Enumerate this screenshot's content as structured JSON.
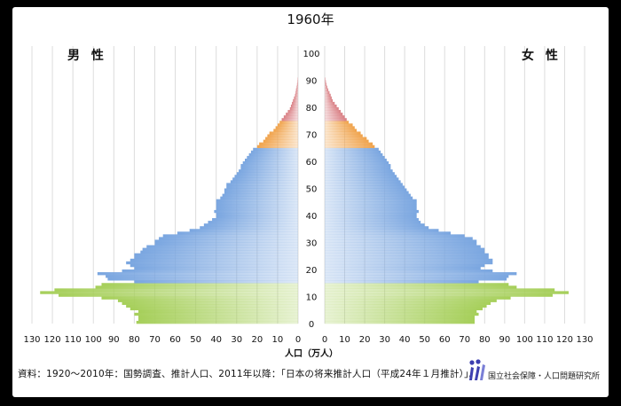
{
  "title": "1960年",
  "footnote": "資料：1920～2010年：国勢調査、推計人口、2011年以降：「日本の将来推計人口（平成24年１月推計）」。",
  "logo": {
    "org_name": "国立社会保障・人口問題研究所"
  },
  "colors": {
    "age_0_14": "#a6cf5a",
    "age_15_64": "#7aa6e0",
    "age_65_74": "#f0a34c",
    "age_75_plus": "#d97f84",
    "grid": "#dcdcdc"
  },
  "chart_data": {
    "type": "bar",
    "orientation": "horizontal",
    "title": "1960年",
    "left_label": "男 性",
    "right_label": "女 性",
    "xlabel": "人口（万人）",
    "x_ticks": [
      130,
      120,
      110,
      100,
      90,
      80,
      70,
      60,
      50,
      40,
      30,
      20,
      10,
      0
    ],
    "y_ticks": [
      0,
      10,
      20,
      30,
      40,
      50,
      60,
      70,
      80,
      90,
      100
    ],
    "xlim": [
      0,
      130
    ],
    "ylim": [
      0,
      100
    ],
    "grid": true,
    "age_groups": [
      {
        "name": "0-14",
        "from": 0,
        "to": 14
      },
      {
        "name": "15-64",
        "from": 15,
        "to": 64
      },
      {
        "name": "65-74",
        "from": 65,
        "to": 74
      },
      {
        "name": "75+",
        "from": 75,
        "to": 100
      }
    ],
    "ages": [
      0,
      1,
      2,
      3,
      4,
      5,
      6,
      7,
      8,
      9,
      10,
      11,
      12,
      13,
      14,
      15,
      16,
      17,
      18,
      19,
      20,
      21,
      22,
      23,
      24,
      25,
      26,
      27,
      28,
      29,
      30,
      31,
      32,
      33,
      34,
      35,
      36,
      37,
      38,
      39,
      40,
      41,
      42,
      43,
      44,
      45,
      46,
      47,
      48,
      49,
      50,
      51,
      52,
      53,
      54,
      55,
      56,
      57,
      58,
      59,
      60,
      61,
      62,
      63,
      64,
      65,
      66,
      67,
      68,
      69,
      70,
      71,
      72,
      73,
      74,
      75,
      76,
      77,
      78,
      79,
      80,
      81,
      82,
      83,
      84,
      85,
      86,
      87,
      88,
      89,
      90
    ],
    "series": [
      {
        "name": "男 性",
        "values": [
          79,
          78,
          78,
          80,
          78,
          82,
          84,
          86,
          88,
          96,
          117,
          126,
          119,
          99,
          96,
          80,
          93,
          94,
          98,
          86,
          80,
          82,
          84,
          82,
          80,
          80,
          77,
          76,
          74,
          70,
          70,
          68,
          66,
          59,
          53,
          48,
          46,
          44,
          42,
          40,
          40,
          41,
          40,
          40,
          40,
          40,
          38,
          37,
          36,
          36,
          35,
          35,
          33,
          32,
          31,
          30,
          29,
          28,
          28,
          27,
          26,
          25,
          24,
          23,
          22,
          20,
          19,
          17,
          16,
          15,
          14,
          12,
          11,
          10,
          9,
          8,
          7,
          6,
          5,
          4,
          3.5,
          3,
          2.5,
          2,
          1.5,
          1.2,
          1,
          0.7,
          0.5,
          0.3,
          0.2
        ]
      },
      {
        "name": "女 性",
        "values": [
          75,
          75,
          75,
          77,
          76,
          79,
          81,
          83,
          86,
          93,
          114,
          122,
          115,
          96,
          92,
          77,
          91,
          92,
          96,
          84,
          78,
          80,
          84,
          84,
          82,
          82,
          80,
          80,
          78,
          76,
          76,
          74,
          70,
          63,
          57,
          52,
          50,
          48,
          47,
          46,
          46,
          47,
          46,
          46,
          46,
          46,
          44,
          43,
          42,
          41,
          40,
          39,
          38,
          37,
          36,
          35,
          34,
          33,
          33,
          32,
          31,
          30,
          29,
          28,
          27,
          25,
          24,
          22,
          21,
          19,
          18,
          16,
          15,
          14,
          12,
          11,
          10,
          9,
          8,
          7,
          6,
          5,
          4,
          3.5,
          3,
          2.4,
          1.8,
          1.3,
          0.9,
          0.6,
          0.3
        ]
      }
    ]
  }
}
